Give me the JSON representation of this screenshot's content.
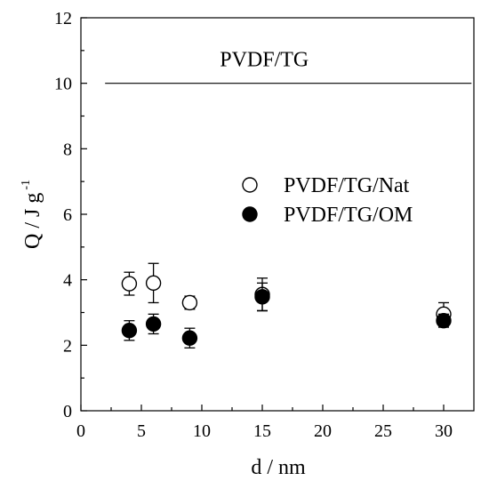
{
  "chart_data": {
    "type": "scatter",
    "xlabel": "d / nm",
    "ylabel_main": "Q / J g",
    "ylabel_sup": "-1",
    "xlim": [
      0,
      32.5
    ],
    "ylim": [
      0,
      12
    ],
    "xticks": [
      0,
      5,
      10,
      15,
      20,
      25,
      30
    ],
    "yticks": [
      0,
      2,
      4,
      6,
      8,
      10,
      12
    ],
    "grid": false,
    "legend_position": "right-middle",
    "reference_line": {
      "label": "PVDF/TG",
      "y": 10.0,
      "x_start": 2,
      "x_end": 32.3
    },
    "series": [
      {
        "name": "PVDF/TG/Nat",
        "marker": "open-circle",
        "x": [
          4,
          6,
          9,
          15,
          30
        ],
        "y": [
          3.88,
          3.9,
          3.3,
          3.55,
          2.95
        ],
        "err": [
          0.35,
          0.6,
          0.2,
          0.5,
          0.35
        ]
      },
      {
        "name": "PVDF/TG/OM",
        "marker": "filled-circle",
        "x": [
          4,
          6,
          9,
          15,
          30
        ],
        "y": [
          2.45,
          2.65,
          2.22,
          3.48,
          2.75
        ],
        "err": [
          0.3,
          0.3,
          0.3,
          0.42,
          0.2
        ]
      }
    ]
  }
}
